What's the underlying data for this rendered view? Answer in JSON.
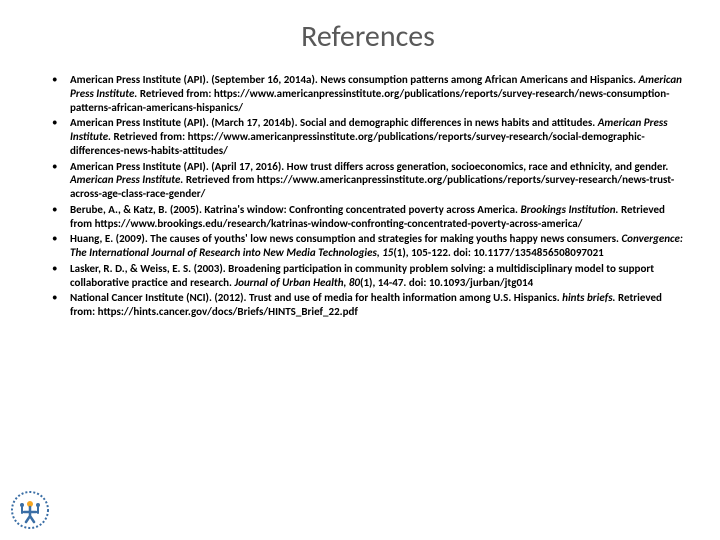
{
  "title": "References",
  "title_color": "#595959",
  "title_fontsize": 30,
  "body_fontsize": 11,
  "body_color": "#000000",
  "background_color": "#ffffff",
  "logo_colors": {
    "outer": "#3a6ea5",
    "inner": "#ffffff",
    "accent": "#f5a623"
  },
  "references": [
    {
      "prefix": "American Press Institute (API). (September 16, 2014a). News consumption patterns among African Americans and Hispanics. ",
      "italic": "American Press Institute. ",
      "suffix": "Retrieved from: https://www.americanpressinstitute.org/publications/reports/survey-research/news-consumption-patterns-african-americans-hispanics/"
    },
    {
      "prefix": "American Press Institute (API). (March 17, 2014b). Social and demographic differences in news habits and attitudes. ",
      "italic": "American Press Institute. ",
      "suffix": "Retrieved from: https://www.americanpressinstitute.org/publications/reports/survey-research/social-demographic-differences-news-habits-attitudes/"
    },
    {
      "prefix": "American Press Institute (API). (April 17, 2016). How trust differs across generation, socioeconomics, race and ethnicity, and gender. ",
      "italic": "American Press Institute. ",
      "suffix": "Retrieved from https://www.americanpressinstitute.org/publications/reports/survey-research/news-trust-across-age-class-race-gender/"
    },
    {
      "prefix": "Berube, A., & Katz, B. (2005). Katrina's window: Confronting concentrated poverty across America. ",
      "italic": "Brookings Institution. ",
      "suffix": "Retrieved from https://www.brookings.edu/research/katrinas-window-confronting-concentrated-poverty-across-america/"
    },
    {
      "prefix": "Huang, E. (2009). The causes of youths' low news consumption and strategies for making youths happy news consumers. ",
      "italic": "Convergence: The International Journal of Research into New Media Technologies, 15",
      "suffix": "(1), 105-122. doi: 10.1177/1354856508097021"
    },
    {
      "prefix": "Lasker, R. D., & Weiss, E. S. (2003). Broadening participation in community problem solving: a multidisciplinary model to support collaborative practice and research. ",
      "italic": "Journal of Urban Health, 80",
      "suffix": "(1), 14-47. doi: 10.1093/jurban/jtg014"
    },
    {
      "prefix": "National Cancer Institute (NCI). (2012). Trust and use of media for health information among U.S. Hispanics. ",
      "italic": "hints briefs. ",
      "suffix": "Retrieved from: https://hints.cancer.gov/docs/Briefs/HINTS_Brief_22.pdf"
    }
  ]
}
